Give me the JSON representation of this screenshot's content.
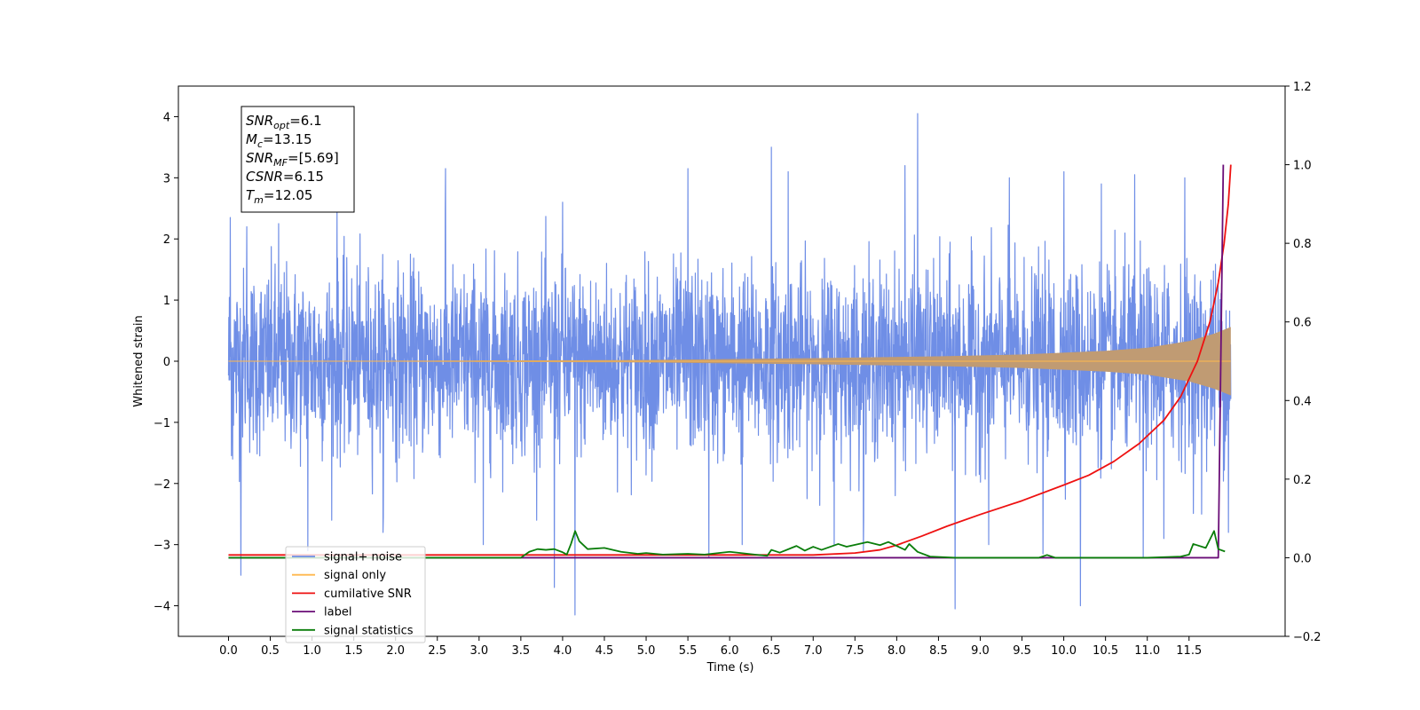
{
  "chart_data": {
    "type": "line",
    "xlabel": "Time (s)",
    "ylabel": "Whitened strain",
    "xlim": [
      -0.6,
      12.65
    ],
    "ylim": [
      -4.5,
      4.5
    ],
    "y2lim": [
      -0.2,
      1.2
    ],
    "x_ticks": [
      0.0,
      0.5,
      1.0,
      1.5,
      2.0,
      2.5,
      3.0,
      3.5,
      4.0,
      4.5,
      5.0,
      5.5,
      6.0,
      6.5,
      7.0,
      7.5,
      8.0,
      8.5,
      9.0,
      9.5,
      10.0,
      10.5,
      11.0,
      11.5
    ],
    "x_tick_labels": [
      "0.0",
      "0.5",
      "1.0",
      "1.5",
      "2.0",
      "2.5",
      "3.0",
      "3.5",
      "4.0",
      "4.5",
      "5.0",
      "5.5",
      "6.0",
      "6.5",
      "7.0",
      "7.5",
      "8.0",
      "8.5",
      "9.0",
      "9.5",
      "10.0",
      "10.5",
      "11.0",
      "11.5"
    ],
    "y_ticks": [
      -4,
      -3,
      -2,
      -1,
      0,
      1,
      2,
      3,
      4
    ],
    "y_tick_labels": [
      "−4",
      "−3",
      "−2",
      "−1",
      "0",
      "1",
      "2",
      "3",
      "4"
    ],
    "y2_ticks": [
      -0.2,
      0.0,
      0.2,
      0.4,
      0.6,
      0.8,
      1.0,
      1.2
    ],
    "y2_tick_labels": [
      "−0.2",
      "0.0",
      "0.2",
      "0.4",
      "0.6",
      "0.8",
      "1.0",
      "1.2"
    ],
    "legend_position": "lower-left",
    "grid": false,
    "annotation": [
      {
        "main": "SNR",
        "sub": "opt",
        "value": "=6.1"
      },
      {
        "main": "M",
        "sub": "c",
        "value": "=13.15"
      },
      {
        "main": "SNR",
        "sub": "MF",
        "value": "=[5.69]"
      },
      {
        "main": "CSNR",
        "sub": "",
        "value": "=6.15"
      },
      {
        "main": "T",
        "sub": "m",
        "value": "=12.05"
      }
    ],
    "series": [
      {
        "name": "signal+ noise",
        "axis": "left",
        "color": "#6f8ee6",
        "kind": "noise",
        "x_range": [
          0.0,
          12.0
        ],
        "std": 0.75,
        "spikes": [
          {
            "x": 0.02,
            "y": 2.35
          },
          {
            "x": 0.05,
            "y": -1.6
          },
          {
            "x": 0.15,
            "y": -3.5
          },
          {
            "x": 0.22,
            "y": 2.2
          },
          {
            "x": 0.6,
            "y": 2.25
          },
          {
            "x": 0.95,
            "y": -3.1
          },
          {
            "x": 1.3,
            "y": 2.5
          },
          {
            "x": 1.85,
            "y": -2.8
          },
          {
            "x": 2.6,
            "y": 3.15
          },
          {
            "x": 3.05,
            "y": -3.0
          },
          {
            "x": 3.9,
            "y": -3.7
          },
          {
            "x": 4.0,
            "y": 2.6
          },
          {
            "x": 4.15,
            "y": 3.1
          },
          {
            "x": 4.15,
            "y": -4.15
          },
          {
            "x": 5.5,
            "y": 3.15
          },
          {
            "x": 5.75,
            "y": -3.2
          },
          {
            "x": 6.15,
            "y": -3.0
          },
          {
            "x": 6.5,
            "y": 3.5
          },
          {
            "x": 6.7,
            "y": 3.1
          },
          {
            "x": 7.25,
            "y": -3.0
          },
          {
            "x": 7.6,
            "y": -3.1
          },
          {
            "x": 8.1,
            "y": 3.2
          },
          {
            "x": 8.25,
            "y": 4.05
          },
          {
            "x": 8.7,
            "y": -4.05
          },
          {
            "x": 9.1,
            "y": -3.0
          },
          {
            "x": 9.35,
            "y": 3.0
          },
          {
            "x": 9.75,
            "y": -3.15
          },
          {
            "x": 10.0,
            "y": 3.1
          },
          {
            "x": 10.2,
            "y": -4.0
          },
          {
            "x": 10.45,
            "y": 2.9
          },
          {
            "x": 10.85,
            "y": 3.05
          },
          {
            "x": 10.95,
            "y": -3.2
          },
          {
            "x": 11.2,
            "y": -2.9
          },
          {
            "x": 11.45,
            "y": 3.0
          },
          {
            "x": 11.65,
            "y": -2.5
          },
          {
            "x": 11.97,
            "y": -2.8
          }
        ]
      },
      {
        "name": "signal only",
        "axis": "left",
        "color": "#ffb84d",
        "fill_color": "#c09b73",
        "kind": "chirp",
        "x_range": [
          0.0,
          12.0
        ],
        "envelope": [
          [
            0.0,
            0.0
          ],
          [
            5.0,
            0.02
          ],
          [
            7.0,
            0.05
          ],
          [
            8.5,
            0.08
          ],
          [
            9.5,
            0.11
          ],
          [
            10.5,
            0.17
          ],
          [
            11.0,
            0.22
          ],
          [
            11.5,
            0.33
          ],
          [
            11.8,
            0.45
          ],
          [
            12.0,
            0.56
          ]
        ]
      },
      {
        "name": "cumilative SNR",
        "axis": "right",
        "color": "#ee1111",
        "kind": "line",
        "points": [
          [
            0.0,
            0.007
          ],
          [
            6.0,
            0.007
          ],
          [
            7.0,
            0.007
          ],
          [
            7.5,
            0.012
          ],
          [
            7.8,
            0.02
          ],
          [
            8.0,
            0.032
          ],
          [
            8.3,
            0.055
          ],
          [
            8.6,
            0.08
          ],
          [
            9.0,
            0.11
          ],
          [
            9.5,
            0.145
          ],
          [
            10.0,
            0.185
          ],
          [
            10.3,
            0.21
          ],
          [
            10.6,
            0.245
          ],
          [
            10.9,
            0.29
          ],
          [
            11.2,
            0.35
          ],
          [
            11.4,
            0.41
          ],
          [
            11.6,
            0.5
          ],
          [
            11.75,
            0.6
          ],
          [
            11.85,
            0.7
          ],
          [
            11.92,
            0.8
          ],
          [
            11.97,
            0.9
          ],
          [
            12.0,
            1.0
          ]
        ]
      },
      {
        "name": "label",
        "axis": "right",
        "color": "#6a0d77",
        "kind": "line",
        "points": [
          [
            0.0,
            0.0
          ],
          [
            11.85,
            0.0
          ],
          [
            11.91,
            1.0
          ]
        ]
      },
      {
        "name": "signal statistics",
        "axis": "right",
        "color": "#0a7d0a",
        "kind": "line",
        "points": [
          [
            0.0,
            0.0
          ],
          [
            3.5,
            0.0
          ],
          [
            3.6,
            0.015
          ],
          [
            3.7,
            0.022
          ],
          [
            3.8,
            0.02
          ],
          [
            3.9,
            0.022
          ],
          [
            4.0,
            0.014
          ],
          [
            4.05,
            0.008
          ],
          [
            4.1,
            0.035
          ],
          [
            4.15,
            0.068
          ],
          [
            4.2,
            0.042
          ],
          [
            4.3,
            0.022
          ],
          [
            4.5,
            0.025
          ],
          [
            4.7,
            0.015
          ],
          [
            4.9,
            0.01
          ],
          [
            5.0,
            0.012
          ],
          [
            5.2,
            0.008
          ],
          [
            5.5,
            0.01
          ],
          [
            5.7,
            0.008
          ],
          [
            6.0,
            0.015
          ],
          [
            6.3,
            0.008
          ],
          [
            6.45,
            0.005
          ],
          [
            6.5,
            0.02
          ],
          [
            6.6,
            0.013
          ],
          [
            6.8,
            0.03
          ],
          [
            6.9,
            0.018
          ],
          [
            7.0,
            0.028
          ],
          [
            7.1,
            0.02
          ],
          [
            7.3,
            0.035
          ],
          [
            7.4,
            0.028
          ],
          [
            7.55,
            0.035
          ],
          [
            7.65,
            0.04
          ],
          [
            7.8,
            0.032
          ],
          [
            7.9,
            0.04
          ],
          [
            8.0,
            0.03
          ],
          [
            8.1,
            0.02
          ],
          [
            8.15,
            0.035
          ],
          [
            8.25,
            0.015
          ],
          [
            8.4,
            0.003
          ],
          [
            8.7,
            0.0
          ],
          [
            9.7,
            0.0
          ],
          [
            9.8,
            0.007
          ],
          [
            9.9,
            0.0
          ],
          [
            11.0,
            0.0
          ],
          [
            11.4,
            0.003
          ],
          [
            11.5,
            0.008
          ],
          [
            11.55,
            0.035
          ],
          [
            11.7,
            0.025
          ],
          [
            11.8,
            0.068
          ],
          [
            11.85,
            0.022
          ],
          [
            11.93,
            0.016
          ]
        ]
      }
    ],
    "legend": [
      {
        "label": "signal+ noise",
        "color": "#6f8ee6"
      },
      {
        "label": "signal only",
        "color": "#ffb84d"
      },
      {
        "label": "cumilative SNR",
        "color": "#ee1111"
      },
      {
        "label": "label",
        "color": "#6a0d77"
      },
      {
        "label": "signal statistics",
        "color": "#0a7d0a"
      }
    ]
  }
}
